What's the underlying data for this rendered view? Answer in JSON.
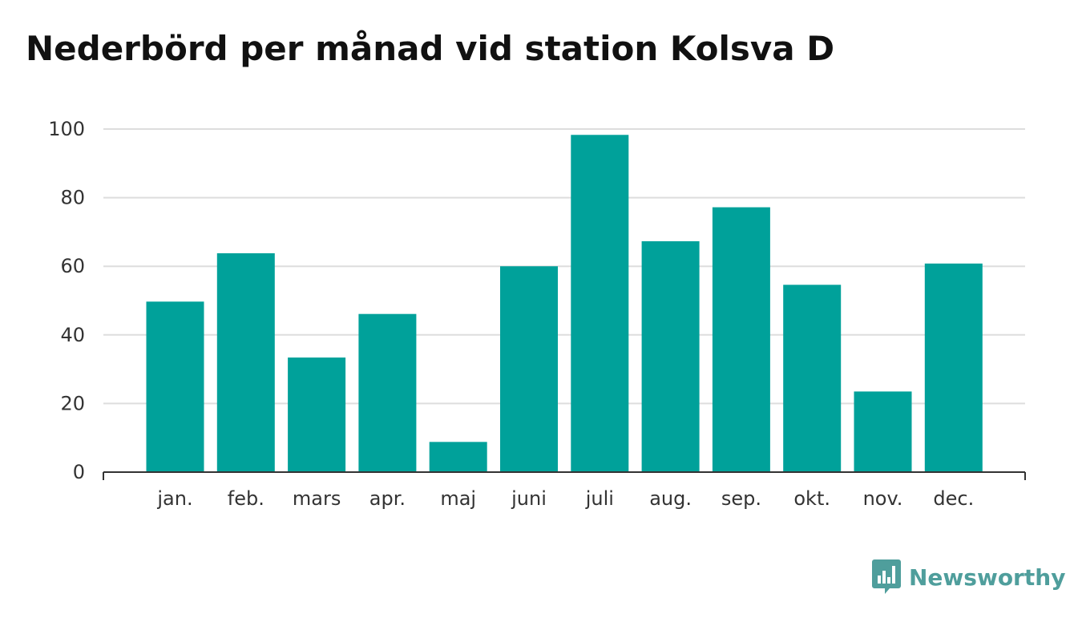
{
  "chart_data": {
    "type": "bar",
    "title": "Nederbörd per månad vid station Kolsva D",
    "xlabel": "",
    "ylabel": "",
    "categories": [
      "jan.",
      "feb.",
      "mars",
      "apr.",
      "maj",
      "juni",
      "juli",
      "aug.",
      "sep.",
      "okt.",
      "nov.",
      "dec."
    ],
    "values": [
      49.7,
      63.8,
      33.4,
      46.1,
      8.8,
      60.0,
      98.3,
      67.3,
      77.2,
      54.6,
      23.5,
      60.8
    ],
    "ylim": [
      0,
      100
    ],
    "yticks": [
      "0",
      "20",
      "40",
      "60",
      "80",
      "100"
    ],
    "grid": true,
    "bar_color": "#00a19a"
  },
  "brand": {
    "name": "Newsworthy",
    "icon": "newsworthy-logo-icon",
    "color": "#4f9e9c"
  }
}
